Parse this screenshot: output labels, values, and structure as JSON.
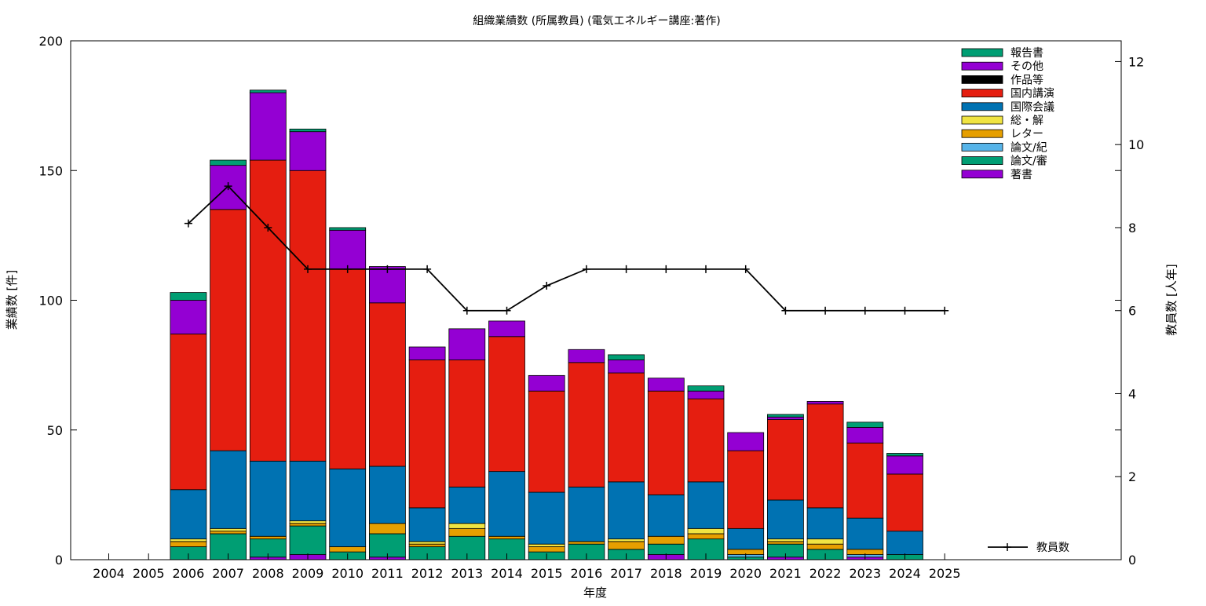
{
  "chart_data": {
    "type": "bar",
    "stacked": true,
    "title": "組織業績数 (所属教員) (電気エネルギー講座:著作)",
    "xlabel": "年度",
    "ylabel": "業績数 [件]",
    "y2label": "教員数 [人年]",
    "ylim": [
      0,
      200
    ],
    "y2lim": [
      0,
      12.5
    ],
    "yticks": [
      0,
      50,
      100,
      150,
      200
    ],
    "y2ticks": [
      0,
      2,
      4,
      6,
      8,
      10,
      12
    ],
    "grid": false,
    "legend_position": "top-right",
    "categories": [
      "2004",
      "2005",
      "2006",
      "2007",
      "2008",
      "2009",
      "2010",
      "2011",
      "2012",
      "2013",
      "2014",
      "2015",
      "2016",
      "2017",
      "2018",
      "2019",
      "2020",
      "2021",
      "2022",
      "2023",
      "2024",
      "2025"
    ],
    "series": [
      {
        "name": "著書",
        "color": "#9400d3",
        "values": [
          0,
          0,
          0,
          0,
          1,
          2,
          0,
          1,
          0,
          0,
          0,
          0,
          0,
          0,
          2,
          0,
          0,
          1,
          0,
          1,
          0,
          0
        ]
      },
      {
        "name": "論文/審",
        "color": "#009e73",
        "values": [
          0,
          0,
          5,
          10,
          7,
          11,
          3,
          9,
          5,
          9,
          8,
          3,
          6,
          4,
          4,
          8,
          1,
          5,
          4,
          0,
          2,
          0
        ]
      },
      {
        "name": "論文/紀",
        "color": "#56b4e9",
        "values": [
          0,
          0,
          0,
          0,
          0,
          0,
          0,
          0,
          0,
          0,
          0,
          0,
          0,
          0,
          0,
          0,
          1,
          0,
          0,
          1,
          0,
          0
        ]
      },
      {
        "name": "レター",
        "color": "#e69f00",
        "values": [
          0,
          0,
          2,
          1,
          1,
          1,
          2,
          4,
          1,
          3,
          1,
          2,
          1,
          3,
          3,
          2,
          2,
          1,
          2,
          2,
          0,
          0
        ]
      },
      {
        "name": "総・解",
        "color": "#f0e442",
        "values": [
          0,
          0,
          1,
          1,
          0,
          1,
          0,
          0,
          1,
          2,
          0,
          1,
          0,
          1,
          0,
          2,
          0,
          1,
          2,
          0,
          0,
          0
        ]
      },
      {
        "name": "国際会議",
        "color": "#0072b2",
        "values": [
          0,
          0,
          19,
          30,
          29,
          23,
          30,
          22,
          13,
          14,
          25,
          20,
          21,
          22,
          16,
          18,
          8,
          15,
          12,
          12,
          9,
          0
        ]
      },
      {
        "name": "国内講演",
        "color": "#e51e10",
        "values": [
          0,
          0,
          60,
          93,
          116,
          112,
          77,
          63,
          57,
          49,
          52,
          39,
          48,
          42,
          40,
          32,
          30,
          31,
          40,
          29,
          22,
          0
        ]
      },
      {
        "name": "作品等",
        "color": "#000000",
        "values": [
          0,
          0,
          0,
          0,
          0,
          0,
          0,
          0,
          0,
          0,
          0,
          0,
          0,
          0,
          0,
          0,
          0,
          0,
          0,
          0,
          0,
          0
        ]
      },
      {
        "name": "その他",
        "color": "#9400d3",
        "values": [
          0,
          0,
          13,
          17,
          26,
          15,
          15,
          14,
          5,
          12,
          6,
          6,
          5,
          5,
          5,
          3,
          7,
          1,
          1,
          6,
          7,
          0
        ]
      },
      {
        "name": "報告書",
        "color": "#009e73",
        "values": [
          0,
          0,
          3,
          2,
          1,
          1,
          1,
          0,
          0,
          0,
          0,
          0,
          0,
          2,
          0,
          2,
          0,
          1,
          0,
          2,
          1,
          0
        ]
      }
    ],
    "line_series": {
      "name": "教員数",
      "axis": "y2",
      "color": "#000000",
      "x": [
        "2006",
        "2007",
        "2008",
        "2009",
        "2010",
        "2011",
        "2012",
        "2013",
        "2014",
        "2015",
        "2016",
        "2017",
        "2018",
        "2019",
        "2020",
        "2021",
        "2022",
        "2023",
        "2024",
        "2025"
      ],
      "values": [
        8.1,
        9.0,
        8.0,
        7.0,
        7.0,
        7.0,
        7.0,
        6.0,
        6.0,
        6.6,
        7.0,
        7.0,
        7.0,
        7.0,
        7.0,
        6.0,
        6.0,
        6.0,
        6.0,
        6.0
      ]
    }
  }
}
